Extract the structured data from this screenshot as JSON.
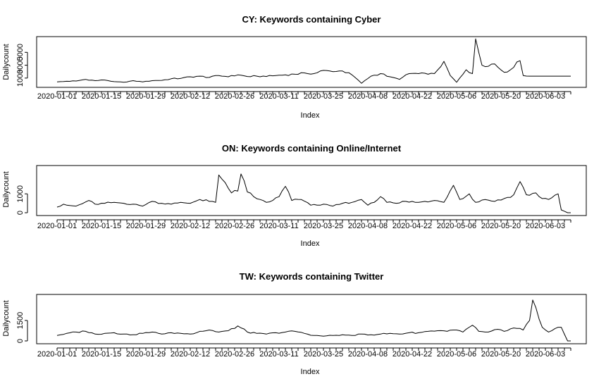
{
  "chart_data": [
    {
      "type": "line",
      "title": "CY: Keywords containing Cyber",
      "xlabel": "Index",
      "ylabel": "Dailycount",
      "ylim": [
        0,
        7000
      ],
      "yticks": [
        1000,
        3000,
        5000
      ],
      "x_tick_labels": [
        "2020-01-01",
        "2020-01-15",
        "2020-01-29",
        "2020-02-12",
        "2020-02-26",
        "2020-03-11",
        "2020-03-25",
        "2020-04-08",
        "2020-04-22",
        "2020-05-06",
        "2020-05-20",
        "2020-06-03"
      ],
      "grid": false,
      "legend": "none",
      "anchors": [
        [
          0,
          400
        ],
        [
          3,
          500
        ],
        [
          6,
          550
        ],
        [
          9,
          800
        ],
        [
          12,
          600
        ],
        [
          15,
          700
        ],
        [
          18,
          450
        ],
        [
          21,
          350
        ],
        [
          24,
          600
        ],
        [
          27,
          400
        ],
        [
          30,
          600
        ],
        [
          33,
          650
        ],
        [
          36,
          900
        ],
        [
          39,
          950
        ],
        [
          42,
          1200
        ],
        [
          45,
          1300
        ],
        [
          48,
          1100
        ],
        [
          51,
          1400
        ],
        [
          54,
          1200
        ],
        [
          57,
          1500
        ],
        [
          60,
          1250
        ],
        [
          63,
          1300
        ],
        [
          66,
          1250
        ],
        [
          69,
          1400
        ],
        [
          72,
          1500
        ],
        [
          75,
          1600
        ],
        [
          78,
          1800
        ],
        [
          81,
          1700
        ],
        [
          84,
          2200
        ],
        [
          87,
          2000
        ],
        [
          90,
          2100
        ],
        [
          93,
          1500
        ],
        [
          96,
          200
        ],
        [
          99,
          1300
        ],
        [
          102,
          1700
        ],
        [
          105,
          1200
        ],
        [
          108,
          800
        ],
        [
          111,
          1700
        ],
        [
          114,
          1700
        ],
        [
          117,
          1600
        ],
        [
          119,
          1700
        ],
        [
          122,
          3600
        ],
        [
          124,
          1400
        ],
        [
          126,
          350
        ],
        [
          129,
          2300
        ],
        [
          131,
          1700
        ],
        [
          132,
          7100
        ],
        [
          134,
          3000
        ],
        [
          138,
          3200
        ],
        [
          141,
          1900
        ],
        [
          143,
          2300
        ],
        [
          145,
          3500
        ],
        [
          146,
          3700
        ],
        [
          147,
          1400
        ],
        [
          149,
          1300
        ],
        [
          150,
          1300
        ]
      ],
      "series": [
        {
          "values": []
        }
      ]
    },
    {
      "type": "line",
      "title": "ON: Keywords containing Online/Internet",
      "xlabel": "Index",
      "ylabel": "Dailycount",
      "ylim": [
        0,
        2350
      ],
      "yticks": [
        0,
        1000
      ],
      "x_tick_labels": [
        "2020-01-01",
        "2020-01-15",
        "2020-01-29",
        "2020-02-12",
        "2020-02-26",
        "2020-03-11",
        "2020-03-25",
        "2020-04-08",
        "2020-04-22",
        "2020-05-06",
        "2020-05-20",
        "2020-06-03"
      ],
      "grid": false,
      "legend": "none",
      "anchors": [
        [
          0,
          300
        ],
        [
          2,
          450
        ],
        [
          4,
          380
        ],
        [
          6,
          350
        ],
        [
          8,
          480
        ],
        [
          10,
          650
        ],
        [
          12,
          450
        ],
        [
          15,
          500
        ],
        [
          18,
          550
        ],
        [
          21,
          500
        ],
        [
          24,
          450
        ],
        [
          27,
          350
        ],
        [
          30,
          600
        ],
        [
          33,
          500
        ],
        [
          36,
          450
        ],
        [
          39,
          550
        ],
        [
          42,
          500
        ],
        [
          45,
          700
        ],
        [
          48,
          600
        ],
        [
          50,
          550
        ],
        [
          51,
          2000
        ],
        [
          53,
          1600
        ],
        [
          55,
          1050
        ],
        [
          57,
          1150
        ],
        [
          58,
          2050
        ],
        [
          60,
          1100
        ],
        [
          62,
          850
        ],
        [
          64,
          700
        ],
        [
          66,
          550
        ],
        [
          68,
          650
        ],
        [
          70,
          850
        ],
        [
          72,
          1400
        ],
        [
          74,
          650
        ],
        [
          77,
          700
        ],
        [
          80,
          400
        ],
        [
          84,
          450
        ],
        [
          87,
          350
        ],
        [
          90,
          500
        ],
        [
          93,
          550
        ],
        [
          96,
          700
        ],
        [
          98,
          400
        ],
        [
          100,
          550
        ],
        [
          102,
          850
        ],
        [
          104,
          550
        ],
        [
          107,
          500
        ],
        [
          110,
          600
        ],
        [
          113,
          550
        ],
        [
          116,
          600
        ],
        [
          119,
          650
        ],
        [
          122,
          550
        ],
        [
          125,
          1450
        ],
        [
          127,
          700
        ],
        [
          130,
          1000
        ],
        [
          132,
          550
        ],
        [
          135,
          700
        ],
        [
          138,
          600
        ],
        [
          141,
          750
        ],
        [
          144,
          950
        ],
        [
          146,
          1650
        ],
        [
          148,
          950
        ],
        [
          151,
          1050
        ],
        [
          153,
          750
        ],
        [
          155,
          700
        ],
        [
          158,
          1000
        ],
        [
          159,
          150
        ],
        [
          161,
          0
        ],
        [
          162,
          0
        ]
      ],
      "series": [
        {
          "values": []
        }
      ]
    },
    {
      "type": "line",
      "title": "TW: Keywords containing Twitter",
      "xlabel": "Index",
      "ylabel": "Dailycount",
      "ylim": [
        0,
        3200
      ],
      "yticks": [
        0,
        1500
      ],
      "x_tick_labels": [
        "2020-01-01",
        "2020-01-15",
        "2020-01-29",
        "2020-02-12",
        "2020-02-26",
        "2020-03-11",
        "2020-03-25",
        "2020-04-08",
        "2020-04-22",
        "2020-05-06",
        "2020-05-20",
        "2020-06-03"
      ],
      "grid": false,
      "legend": "none",
      "anchors": [
        [
          0,
          400
        ],
        [
          3,
          550
        ],
        [
          6,
          650
        ],
        [
          9,
          700
        ],
        [
          12,
          500
        ],
        [
          15,
          550
        ],
        [
          18,
          600
        ],
        [
          21,
          500
        ],
        [
          24,
          450
        ],
        [
          27,
          550
        ],
        [
          30,
          650
        ],
        [
          33,
          500
        ],
        [
          36,
          600
        ],
        [
          39,
          550
        ],
        [
          42,
          500
        ],
        [
          45,
          700
        ],
        [
          48,
          800
        ],
        [
          51,
          650
        ],
        [
          54,
          750
        ],
        [
          57,
          1100
        ],
        [
          60,
          650
        ],
        [
          63,
          550
        ],
        [
          66,
          500
        ],
        [
          69,
          600
        ],
        [
          72,
          650
        ],
        [
          75,
          700
        ],
        [
          78,
          550
        ],
        [
          81,
          400
        ],
        [
          84,
          350
        ],
        [
          87,
          400
        ],
        [
          90,
          450
        ],
        [
          93,
          400
        ],
        [
          96,
          500
        ],
        [
          99,
          450
        ],
        [
          102,
          500
        ],
        [
          105,
          550
        ],
        [
          108,
          500
        ],
        [
          111,
          600
        ],
        [
          114,
          600
        ],
        [
          117,
          700
        ],
        [
          120,
          750
        ],
        [
          123,
          700
        ],
        [
          126,
          800
        ],
        [
          128,
          650
        ],
        [
          131,
          1150
        ],
        [
          133,
          700
        ],
        [
          136,
          650
        ],
        [
          139,
          850
        ],
        [
          141,
          700
        ],
        [
          144,
          950
        ],
        [
          147,
          800
        ],
        [
          149,
          1500
        ],
        [
          150,
          3000
        ],
        [
          153,
          1000
        ],
        [
          155,
          650
        ],
        [
          157,
          900
        ],
        [
          159,
          1000
        ],
        [
          161,
          0
        ],
        [
          162,
          0
        ]
      ],
      "series": [
        {
          "values": []
        }
      ]
    }
  ]
}
